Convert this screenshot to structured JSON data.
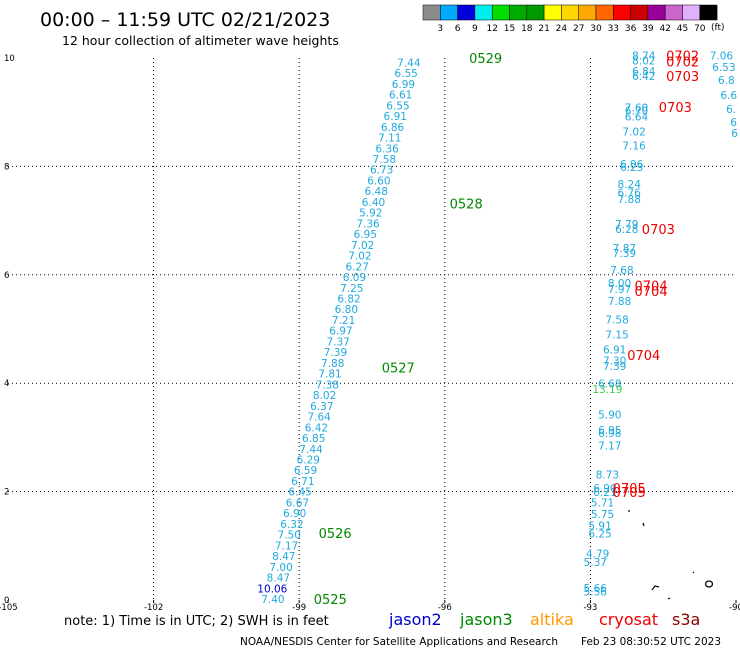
{
  "header": {
    "title": "00:00 – 11:59 UTC 02/21/2023",
    "subtitle": "12 hour collection of altimeter wave heights"
  },
  "colorbar": {
    "unit": "(ft)",
    "ticks": [
      "3",
      "6",
      "9",
      "12",
      "15",
      "18",
      "21",
      "24",
      "27",
      "30",
      "33",
      "36",
      "39",
      "42",
      "45",
      "70"
    ],
    "colors": [
      "#8c8c8c",
      "#00aaff",
      "#0000dd",
      "#00eeee",
      "#00dd00",
      "#00aa00",
      "#009900",
      "#ffff00",
      "#ffd700",
      "#ffaa00",
      "#ff6600",
      "#ff0000",
      "#cc0000",
      "#990099",
      "#cc66cc",
      "#e0b0ff",
      "#000000"
    ]
  },
  "footer": {
    "note": "note: 1) Time is in UTC; 2) SWH is in feet",
    "credit": "NOAA/NESDIS Center for Satellite Applications and Research",
    "timestamp": "Feb 23 08:30:52 UTC 2023",
    "satellites": [
      {
        "name": "jason2",
        "color": "#0000cc"
      },
      {
        "name": "jason3",
        "color": "#008800"
      },
      {
        "name": "altika",
        "color": "#ff9900"
      },
      {
        "name": "cryosat",
        "color": "#ee0000"
      },
      {
        "name": "s3a",
        "color": "#880000"
      }
    ]
  },
  "chart_data": {
    "type": "scatter",
    "xlim": [
      -105,
      -90
    ],
    "ylim": [
      0,
      10
    ],
    "x_ticks": [
      -105,
      -102,
      -99,
      -96,
      -93,
      -90
    ],
    "x_tick_labels": [
      "-105",
      "-102",
      "-99",
      "-96",
      "-93",
      "-90"
    ],
    "y_ticks": [
      0,
      2,
      4,
      6,
      8,
      10
    ],
    "grid": true,
    "track_color": "#20aadd",
    "track_start": {
      "lon": -99.3,
      "lat": 0.0
    },
    "track_end": {
      "lon": -96.5,
      "lat": 9.9
    },
    "track_values": [
      "7.40",
      "10.06",
      "8.47",
      "7.00",
      "8.47",
      "7.17",
      "7.50",
      "6.32",
      "6.90",
      "6.67",
      "6.45",
      "6.71",
      "6.59",
      "6.29",
      "7.44",
      "6.85",
      "6.42",
      "7.64",
      "6.37",
      "8.02",
      "7.38",
      "7.81",
      "7.88",
      "7.39",
      "7.37",
      "6.97",
      "7.21",
      "6.80",
      "6.82",
      "7.25",
      "6.09",
      "6.27",
      "7.02",
      "7.02",
      "6.95",
      "7.36",
      "5.92",
      "6.40",
      "6.48",
      "6.60",
      "6.73",
      "7.58",
      "6.36",
      "7.11",
      "6.86",
      "6.91",
      "6.55",
      "6.61",
      "6.99",
      "6.55",
      "7.44"
    ],
    "track_value_colors": {
      "10.06": "#0000cc"
    },
    "pass_labels": [
      {
        "text": "0525",
        "lon": -98.7,
        "lat": 0.0,
        "color": "#008800"
      },
      {
        "text": "0526",
        "lon": -98.6,
        "lat": 1.22,
        "color": "#008800"
      },
      {
        "text": "0527",
        "lon": -97.3,
        "lat": 4.27,
        "color": "#008800"
      },
      {
        "text": "0528",
        "lon": -95.9,
        "lat": 7.3,
        "color": "#008800"
      },
      {
        "text": "0529",
        "lon": -95.5,
        "lat": 9.98,
        "color": "#008800"
      }
    ],
    "east_track_values": [
      {
        "text": "5.56",
        "lon": -92.9,
        "lat": 0.14
      },
      {
        "text": "5.66",
        "lon": -92.9,
        "lat": 0.2
      },
      {
        "text": "5.37",
        "lon": -92.9,
        "lat": 0.68
      },
      {
        "text": "4.79",
        "lon": -92.85,
        "lat": 0.84
      },
      {
        "text": "6.25",
        "lon": -92.8,
        "lat": 1.21
      },
      {
        "text": "5.91",
        "lon": -92.8,
        "lat": 1.36
      },
      {
        "text": "5.75",
        "lon": -92.75,
        "lat": 1.57
      },
      {
        "text": "5.71",
        "lon": -92.75,
        "lat": 1.78
      },
      {
        "text": "6.21",
        "lon": -92.7,
        "lat": 1.97
      },
      {
        "text": "6.90",
        "lon": -92.7,
        "lat": 2.05
      },
      {
        "text": "8.73",
        "lon": -92.65,
        "lat": 2.3
      },
      {
        "text": "7.17",
        "lon": -92.6,
        "lat": 2.83
      },
      {
        "text": "6.98",
        "lon": -92.6,
        "lat": 3.06
      },
      {
        "text": "6.95",
        "lon": -92.6,
        "lat": 3.12
      },
      {
        "text": "5.90",
        "lon": -92.6,
        "lat": 3.4
      },
      {
        "text": "13.19",
        "lon": -92.65,
        "lat": 3.87,
        "color": "#44cc44"
      },
      {
        "text": "6.68",
        "lon": -92.6,
        "lat": 3.98
      },
      {
        "text": "7.39",
        "lon": -92.5,
        "lat": 4.3
      },
      {
        "text": "7.30",
        "lon": -92.5,
        "lat": 4.4
      },
      {
        "text": "6.91",
        "lon": -92.5,
        "lat": 4.6
      },
      {
        "text": "7.15",
        "lon": -92.45,
        "lat": 4.88
      },
      {
        "text": "7.58",
        "lon": -92.45,
        "lat": 5.16
      },
      {
        "text": "7.88",
        "lon": -92.4,
        "lat": 5.5
      },
      {
        "text": "7.97",
        "lon": -92.4,
        "lat": 5.72
      },
      {
        "text": "8.00",
        "lon": -92.4,
        "lat": 5.83
      },
      {
        "text": "7.68",
        "lon": -92.35,
        "lat": 6.07
      },
      {
        "text": "7.39",
        "lon": -92.3,
        "lat": 6.38
      },
      {
        "text": "7.87",
        "lon": -92.3,
        "lat": 6.48
      },
      {
        "text": "6.28",
        "lon": -92.25,
        "lat": 6.83
      },
      {
        "text": "7.79",
        "lon": -92.25,
        "lat": 6.92
      },
      {
        "text": "7.88",
        "lon": -92.2,
        "lat": 7.38
      },
      {
        "text": "6.76",
        "lon": -92.2,
        "lat": 7.5
      },
      {
        "text": "8.24",
        "lon": -92.2,
        "lat": 7.66
      },
      {
        "text": "6.23",
        "lon": -92.15,
        "lat": 7.97
      },
      {
        "text": "6.06",
        "lon": -92.15,
        "lat": 8.03
      },
      {
        "text": "7.16",
        "lon": -92.1,
        "lat": 8.37
      },
      {
        "text": "7.02",
        "lon": -92.1,
        "lat": 8.63
      },
      {
        "text": "6.64",
        "lon": -92.05,
        "lat": 8.9
      },
      {
        "text": "6.70",
        "lon": -92.05,
        "lat": 9.01
      },
      {
        "text": "7.60",
        "lon": -92.05,
        "lat": 9.07
      },
      {
        "text": "6.42",
        "lon": -91.9,
        "lat": 9.65
      },
      {
        "text": "6.84",
        "lon": -91.9,
        "lat": 9.74
      },
      {
        "text": "8.02",
        "lon": -91.9,
        "lat": 9.94
      },
      {
        "text": "8.74",
        "lon": -91.9,
        "lat": 10.03
      },
      {
        "text": "7.06",
        "lon": -90.3,
        "lat": 10.03
      },
      {
        "text": "6.53",
        "lon": -90.25,
        "lat": 9.82
      },
      {
        "text": "6.8",
        "lon": -90.2,
        "lat": 9.58
      },
      {
        "text": "6.6",
        "lon": -90.15,
        "lat": 9.3
      },
      {
        "text": "6.",
        "lon": -90.1,
        "lat": 9.04
      },
      {
        "text": "6",
        "lon": -90.05,
        "lat": 8.8
      },
      {
        "text": "6",
        "lon": -90.03,
        "lat": 8.6
      }
    ],
    "cryosat_labels": [
      {
        "text": "0702",
        "lon": -91.1,
        "lat": 10.03
      },
      {
        "text": "0702",
        "lon": -91.1,
        "lat": 9.92
      },
      {
        "text": "0703",
        "lon": -91.1,
        "lat": 9.65
      },
      {
        "text": "0703",
        "lon": -91.25,
        "lat": 9.08
      },
      {
        "text": "0703",
        "lon": -91.6,
        "lat": 6.83
      },
      {
        "text": "0704",
        "lon": -91.75,
        "lat": 5.78
      },
      {
        "text": "0704",
        "lon": -91.75,
        "lat": 5.68
      },
      {
        "text": "0704",
        "lon": -91.9,
        "lat": 4.5
      },
      {
        "text": "0705",
        "lon": -92.2,
        "lat": 2.05
      },
      {
        "text": "0705",
        "lon": -92.2,
        "lat": 1.97
      }
    ]
  }
}
